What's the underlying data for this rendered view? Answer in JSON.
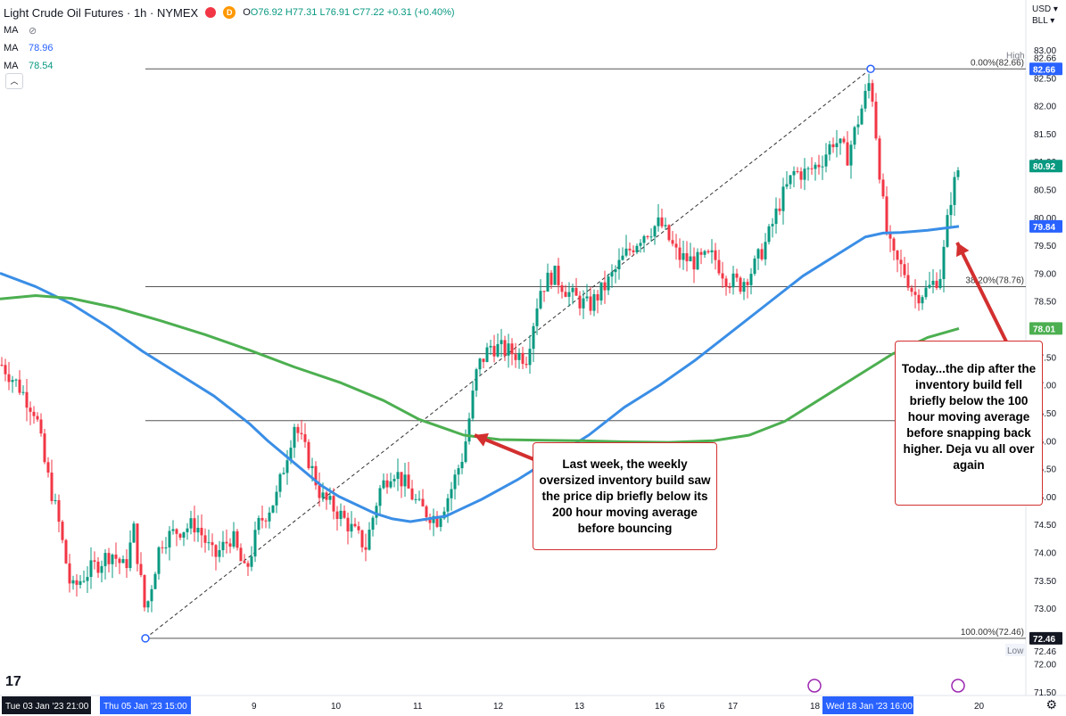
{
  "legend": {
    "title": "Light Crude Oil Futures · 1h · NYMEX",
    "open": "O76.92",
    "high": "H77.31",
    "low": "L76.91",
    "close": "C77.22",
    "change": "+0.31 (+0.40%)",
    "ma1_label": "MA",
    "ma2_label": "MA",
    "ma2_value": "78.96",
    "ma3_label": "MA",
    "ma3_value": "78.54",
    "d_badge": "D",
    "collapse": "︿"
  },
  "top_right": {
    "currency": "USD",
    "unit": "BLL"
  },
  "colors": {
    "up": "#089981",
    "down": "#f23645",
    "ma100": "#3a8ee6",
    "ma200": "#4caf50",
    "annotation": "#d32f2f"
  },
  "annotations": {
    "last_week": "Last week, the weekly oversized inventory build saw the price dip briefly below its 200 hour moving average before bouncing",
    "today": "Today...the dip after the inventory build fell briefly below the 100 hour moving average before snapping back higher. Deja vu all over again"
  },
  "chart_data": {
    "type": "candlestick",
    "y_axis": {
      "ticks": [
        83.0,
        82.5,
        82.0,
        81.5,
        81.0,
        80.5,
        80.0,
        79.5,
        79.0,
        78.5,
        78.0,
        77.5,
        77.0,
        76.5,
        76.0,
        75.5,
        75.0,
        74.5,
        74.0,
        73.5,
        73.0,
        72.5,
        72.0,
        71.5
      ],
      "range": [
        71.5,
        83.0
      ]
    },
    "x_axis": {
      "ticks": [
        "Tue 03 Jan '23  21:00",
        "Thu 05 Jan '23  15:00",
        "9",
        "10",
        "11",
        "12",
        "13",
        "16",
        "17",
        "18",
        "Wed 18 Jan '23  16:00",
        "20"
      ]
    },
    "price_labels": [
      {
        "text": "High",
        "value": 82.66
      },
      {
        "text": "82.66",
        "value": 82.66
      },
      {
        "text": "80.92",
        "value": 80.92
      },
      {
        "text": "79.84",
        "value": 79.84
      },
      {
        "text": "78.01",
        "value": 78.01
      },
      {
        "text": "72.46",
        "value": 72.46
      },
      {
        "text": "72.46",
        "value": 72.46
      },
      {
        "text": "Low",
        "value": 72.46
      }
    ],
    "fib_levels": [
      {
        "label": "0.00%(82.66)",
        "value": 82.66
      },
      {
        "label": "38.20%(78.76)",
        "value": 78.76
      },
      {
        "label": "",
        "value": 77.56
      },
      {
        "label": "",
        "value": 76.36
      },
      {
        "label": "100.00%(72.46)",
        "value": 72.46
      }
    ],
    "trend_line": {
      "from": {
        "x": "Jan 5 15:00",
        "y": 72.46
      },
      "to": {
        "x": "Jan 18 08:00",
        "y": 82.66
      }
    },
    "series": [
      {
        "name": "MA 100",
        "x": [
          0,
          40,
          80,
          120,
          160,
          200,
          240,
          280,
          300,
          330,
          360,
          380,
          420,
          440,
          460,
          500,
          540,
          580,
          620,
          660,
          700,
          740,
          780,
          820,
          860,
          900,
          940,
          970,
          990,
          1010,
          1040,
          1075
        ],
        "y": [
          79.0,
          78.76,
          78.45,
          78.05,
          77.6,
          77.2,
          76.8,
          76.3,
          76.0,
          75.6,
          75.2,
          75.0,
          74.7,
          74.6,
          74.55,
          74.65,
          74.95,
          75.3,
          75.7,
          76.1,
          76.6,
          77.0,
          77.45,
          77.95,
          78.45,
          78.95,
          79.35,
          79.65,
          79.72,
          79.73,
          79.77,
          79.84
        ]
      },
      {
        "name": "MA 200",
        "x": [
          0,
          40,
          80,
          130,
          180,
          230,
          280,
          330,
          380,
          430,
          470,
          520,
          560,
          600,
          650,
          700,
          750,
          800,
          840,
          880,
          920,
          960,
          1000,
          1040,
          1075
        ],
        "y": [
          78.54,
          78.6,
          78.55,
          78.38,
          78.15,
          77.9,
          77.62,
          77.32,
          77.05,
          76.72,
          76.38,
          76.1,
          76.02,
          76.01,
          76.0,
          75.98,
          75.97,
          76.0,
          76.1,
          76.35,
          76.75,
          77.15,
          77.55,
          77.85,
          78.01
        ]
      }
    ]
  }
}
